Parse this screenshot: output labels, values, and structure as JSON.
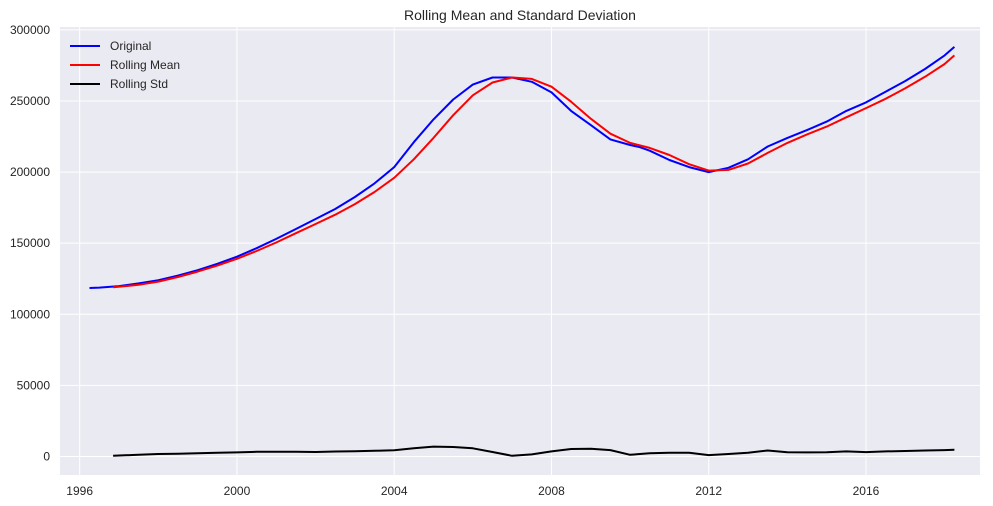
{
  "chart_data": {
    "type": "line",
    "title": "Rolling Mean and Standard Deviation",
    "xlabel": "",
    "ylabel": "",
    "xlim": [
      1995.5,
      2018.9
    ],
    "ylim": [
      -13000,
      302000
    ],
    "x_ticks": [
      1996,
      2000,
      2004,
      2008,
      2012,
      2016
    ],
    "x_tick_labels": [
      "1996",
      "2000",
      "2004",
      "2008",
      "2012",
      "2016"
    ],
    "y_ticks": [
      0,
      50000,
      100000,
      150000,
      200000,
      250000,
      300000
    ],
    "y_tick_labels": [
      "0",
      "50000",
      "100000",
      "150000",
      "200000",
      "250000",
      "300000"
    ],
    "grid": true,
    "legend_position": "top-left",
    "background": "#eaeaf2",
    "series": [
      {
        "name": "Original",
        "color": "#0000ff",
        "points": [
          [
            1996.25,
            118500
          ],
          [
            1996.5,
            118800
          ],
          [
            1997.0,
            119800
          ],
          [
            1997.5,
            121700
          ],
          [
            1998.0,
            124000
          ],
          [
            1998.5,
            127200
          ],
          [
            1999.0,
            131000
          ],
          [
            1999.5,
            135500
          ],
          [
            2000.0,
            140500
          ],
          [
            2000.5,
            146500
          ],
          [
            2001.0,
            153000
          ],
          [
            2001.5,
            160000
          ],
          [
            2002.0,
            167000
          ],
          [
            2002.5,
            174000
          ],
          [
            2003.0,
            182500
          ],
          [
            2003.5,
            192000
          ],
          [
            2004.0,
            203500
          ],
          [
            2004.5,
            221000
          ],
          [
            2005.0,
            237000
          ],
          [
            2005.5,
            251000
          ],
          [
            2006.0,
            261500
          ],
          [
            2006.5,
            266500
          ],
          [
            2007.0,
            266500
          ],
          [
            2007.5,
            263500
          ],
          [
            2008.0,
            256000
          ],
          [
            2008.5,
            243000
          ],
          [
            2009.0,
            233000
          ],
          [
            2009.5,
            223000
          ],
          [
            2010.0,
            219000
          ],
          [
            2010.25,
            217500
          ],
          [
            2010.5,
            215000
          ],
          [
            2011.0,
            208500
          ],
          [
            2011.5,
            203500
          ],
          [
            2012.0,
            200000
          ],
          [
            2012.5,
            203000
          ],
          [
            2013.0,
            209000
          ],
          [
            2013.5,
            218000
          ],
          [
            2014.0,
            224000
          ],
          [
            2014.5,
            229500
          ],
          [
            2015.0,
            235500
          ],
          [
            2015.5,
            243000
          ],
          [
            2016.0,
            249000
          ],
          [
            2016.5,
            256500
          ],
          [
            2017.0,
            264000
          ],
          [
            2017.5,
            272500
          ],
          [
            2018.0,
            282000
          ],
          [
            2018.25,
            288000
          ]
        ]
      },
      {
        "name": "Rolling Mean",
        "color": "#ff0000",
        "points": [
          [
            1996.85,
            119000
          ],
          [
            1997.5,
            120700
          ],
          [
            1998.0,
            123000
          ],
          [
            1998.5,
            126200
          ],
          [
            1999.0,
            130000
          ],
          [
            1999.5,
            134200
          ],
          [
            2000.0,
            139000
          ],
          [
            2000.5,
            144500
          ],
          [
            2001.0,
            150500
          ],
          [
            2001.5,
            157000
          ],
          [
            2002.0,
            163500
          ],
          [
            2002.5,
            170000
          ],
          [
            2003.0,
            177500
          ],
          [
            2003.5,
            186000
          ],
          [
            2004.0,
            196000
          ],
          [
            2004.5,
            209000
          ],
          [
            2005.0,
            224000
          ],
          [
            2005.5,
            240000
          ],
          [
            2006.0,
            254000
          ],
          [
            2006.5,
            263000
          ],
          [
            2007.0,
            266500
          ],
          [
            2007.5,
            265500
          ],
          [
            2008.0,
            260000
          ],
          [
            2008.5,
            249500
          ],
          [
            2009.0,
            237500
          ],
          [
            2009.5,
            227000
          ],
          [
            2010.0,
            220500
          ],
          [
            2010.5,
            217000
          ],
          [
            2011.0,
            212000
          ],
          [
            2011.5,
            205500
          ],
          [
            2012.0,
            201000
          ],
          [
            2012.5,
            201500
          ],
          [
            2013.0,
            206000
          ],
          [
            2013.5,
            213500
          ],
          [
            2014.0,
            220500
          ],
          [
            2014.5,
            226500
          ],
          [
            2015.0,
            232000
          ],
          [
            2015.5,
            238500
          ],
          [
            2016.0,
            245000
          ],
          [
            2016.5,
            251500
          ],
          [
            2017.0,
            259000
          ],
          [
            2017.5,
            267000
          ],
          [
            2018.0,
            276000
          ],
          [
            2018.25,
            282000
          ]
        ]
      },
      {
        "name": "Rolling Std",
        "color": "#000000",
        "points": [
          [
            1996.85,
            500
          ],
          [
            1997.5,
            1300
          ],
          [
            1998.0,
            1800
          ],
          [
            1998.5,
            2000
          ],
          [
            1999.0,
            2300
          ],
          [
            1999.5,
            2600
          ],
          [
            2000.0,
            2900
          ],
          [
            2000.5,
            3300
          ],
          [
            2001.0,
            3300
          ],
          [
            2001.5,
            3400
          ],
          [
            2002.0,
            3200
          ],
          [
            2002.5,
            3500
          ],
          [
            2003.0,
            3700
          ],
          [
            2003.5,
            4000
          ],
          [
            2004.0,
            4400
          ],
          [
            2004.5,
            5800
          ],
          [
            2005.0,
            7000
          ],
          [
            2005.5,
            6700
          ],
          [
            2006.0,
            5800
          ],
          [
            2006.5,
            3200
          ],
          [
            2007.0,
            500
          ],
          [
            2007.5,
            1500
          ],
          [
            2008.0,
            3600
          ],
          [
            2008.5,
            5300
          ],
          [
            2009.0,
            5500
          ],
          [
            2009.5,
            4500
          ],
          [
            2010.0,
            1200
          ],
          [
            2010.5,
            2300
          ],
          [
            2011.0,
            2700
          ],
          [
            2011.5,
            2700
          ],
          [
            2012.0,
            1000
          ],
          [
            2012.5,
            1800
          ],
          [
            2013.0,
            2700
          ],
          [
            2013.5,
            4200
          ],
          [
            2014.0,
            3000
          ],
          [
            2014.5,
            2900
          ],
          [
            2015.0,
            3000
          ],
          [
            2015.5,
            3600
          ],
          [
            2016.0,
            3100
          ],
          [
            2016.5,
            3600
          ],
          [
            2017.0,
            3900
          ],
          [
            2017.5,
            4200
          ],
          [
            2018.0,
            4500
          ],
          [
            2018.25,
            4700
          ]
        ]
      }
    ]
  }
}
